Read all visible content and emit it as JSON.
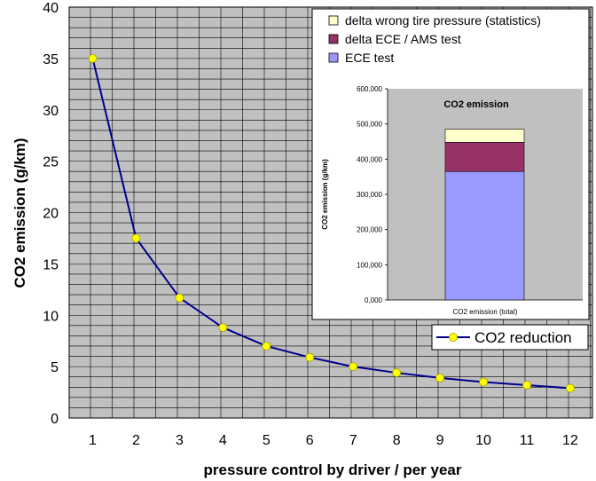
{
  "chart_data": [
    {
      "type": "line",
      "x": [
        1,
        2,
        3,
        4,
        5,
        6,
        7,
        8,
        9,
        10,
        11,
        12
      ],
      "series": [
        {
          "name": "CO2 reduction",
          "values": [
            35,
            17.5,
            11.7,
            8.8,
            7,
            5.9,
            5,
            4.4,
            3.9,
            3.5,
            3.2,
            2.9
          ]
        }
      ],
      "xlabel": "pressure control by driver / per year",
      "ylabel": "CO2 emission (g/km)",
      "xticks": [
        "1",
        "2",
        "3",
        "4",
        "5",
        "6",
        "7",
        "8",
        "9",
        "10",
        "11",
        "12"
      ],
      "yticks": [
        "0",
        "5",
        "10",
        "15",
        "20",
        "25",
        "30",
        "35",
        "40"
      ],
      "ylim": [
        0,
        40
      ],
      "grid": true,
      "line_color": "#00008b",
      "marker_color": "#ffff00",
      "background": "#c0c0c0",
      "legend": "bottom-right"
    },
    {
      "type": "bar",
      "stacked": true,
      "title": "CO2 emission",
      "categories": [
        "CO2 emission (total)"
      ],
      "ylabel": "CO2 emission (g/km)",
      "yticks": [
        "0,000",
        "100,000",
        "200,000",
        "300,000",
        "400,000",
        "500,000",
        "600,000"
      ],
      "ylim": [
        0,
        600000
      ],
      "series": [
        {
          "name": "ECE test",
          "values": [
            365000
          ],
          "color": "#9999ff"
        },
        {
          "name": "delta ECE / AMS test",
          "values": [
            83000
          ],
          "color": "#993366"
        },
        {
          "name": "delta wrong tire pressure (statistics)",
          "values": [
            37000
          ],
          "color": "#ffffcc"
        }
      ],
      "legend": "top",
      "background": "#c0c0c0"
    }
  ]
}
